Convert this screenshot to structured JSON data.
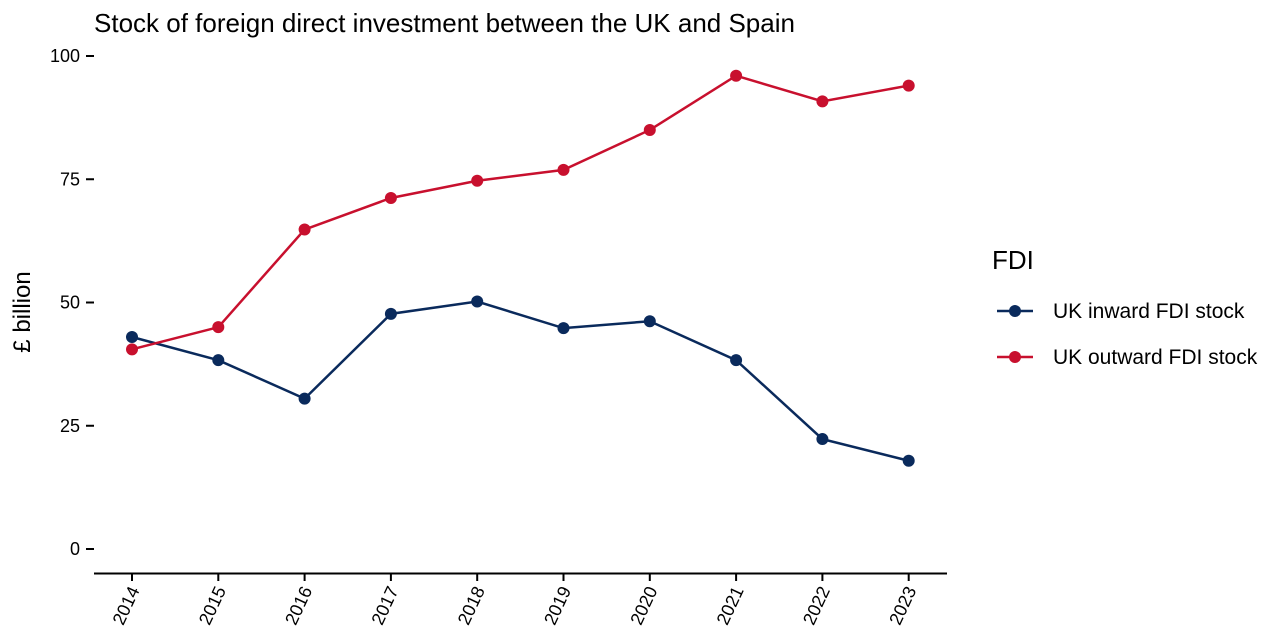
{
  "chart_data": {
    "type": "line",
    "title": "Stock of foreign direct investment between the UK and Spain",
    "xlabel": "",
    "ylabel": "£ billion",
    "x": [
      "2014",
      "2015",
      "2016",
      "2017",
      "2018",
      "2019",
      "2020",
      "2021",
      "2022",
      "2023"
    ],
    "ylim": [
      0,
      100
    ],
    "yticks": [
      "0",
      "25",
      "50",
      "75",
      "100"
    ],
    "legend_title": "FDI",
    "legend_position": "right",
    "grid": false,
    "series": [
      {
        "name": "UK inward FDI stock",
        "color": "#0a2a5c",
        "values": [
          43.0,
          38.3,
          30.5,
          47.7,
          50.2,
          44.8,
          46.2,
          38.3,
          22.3,
          17.9
        ]
      },
      {
        "name": "UK outward FDI stock",
        "color": "#c8102e",
        "values": [
          40.5,
          45.0,
          64.8,
          71.2,
          74.7,
          76.9,
          85.0,
          96.0,
          90.8,
          94.0
        ]
      }
    ]
  }
}
